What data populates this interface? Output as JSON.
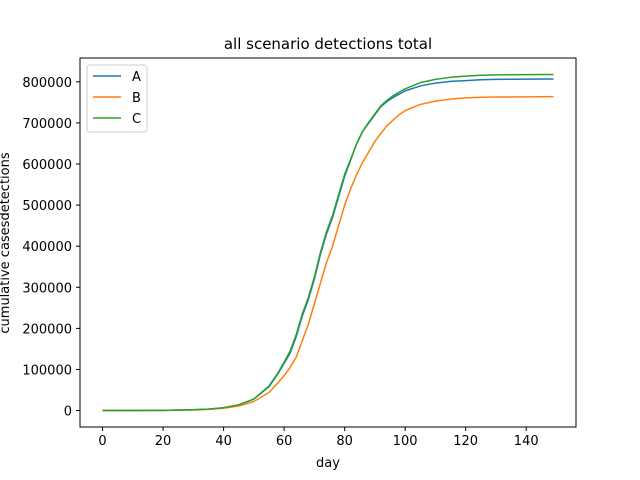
{
  "chart_data": {
    "type": "line",
    "title": "all scenario detections total",
    "xlabel": "day",
    "ylabel": "cumulative casesdetections",
    "xlim": [
      -7.45,
      156.45
    ],
    "ylim": [
      -40000,
      858000
    ],
    "x_ticks": [
      0,
      20,
      40,
      60,
      80,
      100,
      120,
      140
    ],
    "x_tick_labels": [
      "0",
      "20",
      "40",
      "60",
      "80",
      "100",
      "120",
      "140"
    ],
    "y_ticks": [
      0,
      100000,
      200000,
      300000,
      400000,
      500000,
      600000,
      700000,
      800000
    ],
    "y_tick_labels": [
      "0",
      "100000",
      "200000",
      "300000",
      "400000",
      "500000",
      "600000",
      "700000",
      "800000"
    ],
    "grid": false,
    "legend_position": "upper-left",
    "x": [
      0,
      10,
      20,
      30,
      35,
      40,
      45,
      50,
      55,
      58,
      60,
      62,
      64,
      66,
      68,
      70,
      72,
      74,
      76,
      78,
      80,
      82,
      84,
      86,
      88,
      90,
      92,
      94,
      96,
      98,
      100,
      105,
      110,
      115,
      120,
      125,
      130,
      140,
      149
    ],
    "series": [
      {
        "name": "A",
        "color": "#1f77b4",
        "values": [
          0,
          0,
          500,
          2000,
          3500,
          7000,
          14000,
          28000,
          58000,
          90000,
          115000,
          140000,
          180000,
          230000,
          270000,
          320000,
          380000,
          430000,
          470000,
          520000,
          570000,
          610000,
          650000,
          680000,
          700000,
          720000,
          740000,
          752000,
          762000,
          770000,
          778000,
          790000,
          797000,
          801000,
          803000,
          805000,
          806000,
          806500,
          807000
        ]
      },
      {
        "name": "B",
        "color": "#ff7f0e",
        "values": [
          0,
          0,
          500,
          1500,
          2800,
          5500,
          11000,
          22000,
          44000,
          68000,
          85000,
          105000,
          130000,
          170000,
          210000,
          260000,
          310000,
          360000,
          400000,
          450000,
          500000,
          540000,
          575000,
          605000,
          630000,
          655000,
          675000,
          693000,
          707000,
          720000,
          730000,
          745000,
          753000,
          758000,
          761000,
          762500,
          763000,
          763500,
          764000
        ]
      },
      {
        "name": "C",
        "color": "#2ca02c",
        "values": [
          0,
          0,
          500,
          2000,
          3500,
          7000,
          14000,
          28000,
          60000,
          92000,
          118000,
          145000,
          185000,
          235000,
          275000,
          325000,
          385000,
          435000,
          475000,
          525000,
          575000,
          612000,
          650000,
          680000,
          702000,
          722000,
          742000,
          755000,
          766000,
          775000,
          783000,
          798000,
          806000,
          811000,
          814000,
          816000,
          817000,
          817500,
          818000
        ]
      }
    ]
  }
}
